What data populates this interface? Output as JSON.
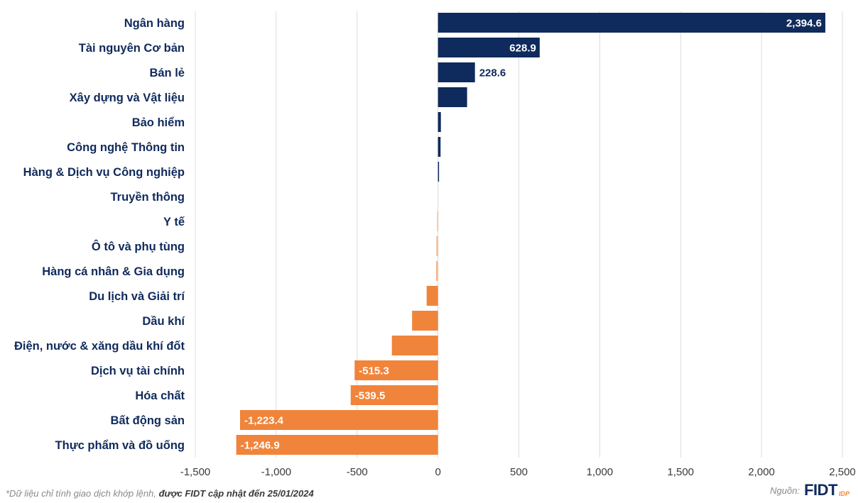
{
  "chart_data": {
    "type": "bar",
    "orientation": "horizontal",
    "categories": [
      "Ngân hàng",
      "Tài nguyên Cơ bản",
      "Bán lẻ",
      "Xây dựng và Vật liệu",
      "Bảo hiểm",
      "Công nghệ Thông tin",
      "Hàng & Dịch vụ Công nghiệp",
      "Truyền thông",
      "Y tế",
      "Ô tô và phụ tùng",
      "Hàng cá nhân & Gia dụng",
      "Du lịch và Giải trí",
      "Dầu khí",
      "Điện, nước & xăng dầu khí đốt",
      "Dịch vụ tài chính",
      "Hóa chất",
      "Bất động sản",
      "Thực phẩm và đồ uống"
    ],
    "values": [
      2394.6,
      628.9,
      228.6,
      180,
      18,
      16,
      5,
      0,
      -5,
      -10,
      -12,
      -70,
      -160,
      -285,
      -515.3,
      -539.5,
      -1223.4,
      -1246.9
    ],
    "data_labels": [
      "2,394.6",
      "628.9",
      "228.6",
      "",
      "",
      "",
      "",
      "",
      "",
      "",
      "",
      "",
      "",
      "",
      "-515.3",
      "-539.5",
      "-1,223.4",
      "-1,246.9"
    ],
    "xlim": [
      -1500,
      2500
    ],
    "xticks": [
      -1500,
      -1000,
      -500,
      0,
      500,
      1000,
      1500,
      2000,
      2500
    ],
    "xtick_labels": [
      "-1,500",
      "-1,000",
      "-500",
      "0",
      "500",
      "1,000",
      "1,500",
      "2,000",
      "2,500"
    ],
    "grid": "vertical",
    "legend": "none",
    "colors": {
      "positive": "#0f2a5c",
      "negative": "#f0843a",
      "negative_light": "#f7b98d",
      "grid": "#dcdcdc",
      "label": "#0f2a5c"
    }
  },
  "footnote": {
    "text": "*Dữ liệu chỉ tính giao dịch khớp lệnh, ",
    "emphasis": "được FIDT cập nhật đến 25/01/2024"
  },
  "source": {
    "label": "Nguồn:",
    "logo_text": "FIDT",
    "logo_sub": "IDP"
  }
}
